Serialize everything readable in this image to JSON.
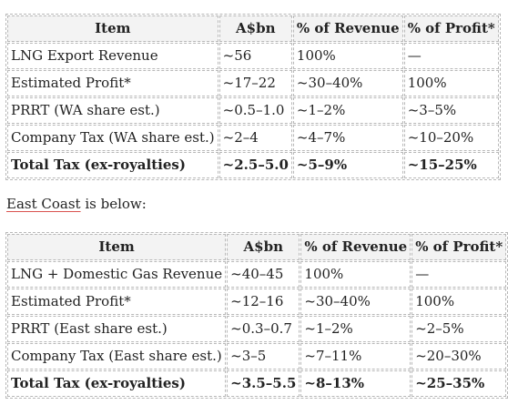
{
  "wa_table": {
    "headers": [
      "Item",
      "A$bn",
      "% of Revenue",
      "% of Profit*"
    ],
    "rows": [
      [
        "LNG Export Revenue",
        "~56",
        "100%",
        "—"
      ],
      [
        "Estimated Profit*",
        "~17–22",
        "~30–40%",
        "100%"
      ],
      [
        "PRRT (WA share est.)",
        "~0.5–1.0",
        "~1–2%",
        "~3–5%"
      ],
      [
        "Company Tax (WA share est.)",
        "~2–4",
        "~4–7%",
        "~10–20%"
      ],
      [
        "Total Tax (ex-royalties)",
        "~2.5–5.0",
        "~5–9%",
        "~15–25%"
      ]
    ]
  },
  "mid_text": {
    "underlined": "East Coast",
    "rest": " is below:"
  },
  "ec_table": {
    "headers": [
      "Item",
      "A$bn",
      "% of Revenue",
      "% of Profit*"
    ],
    "rows": [
      [
        "LNG + Domestic Gas Revenue",
        "~40–45",
        "100%",
        "—"
      ],
      [
        "Estimated Profit*",
        "~12–16",
        "~30–40%",
        "100%"
      ],
      [
        "PRRT (East share est.)",
        "~0.3–0.7",
        "~1–2%",
        "~2–5%"
      ],
      [
        "Company Tax (East share est.)",
        "~3–5",
        "~7–11%",
        "~20–30%"
      ],
      [
        "Total Tax (ex-royalties)",
        "~3.5–5.5",
        "~8–13%",
        "~25–35%"
      ]
    ]
  },
  "colors": {
    "border": "#b8b8b8",
    "header_bg": "#f3f3f3",
    "underline": "#d9534f"
  }
}
